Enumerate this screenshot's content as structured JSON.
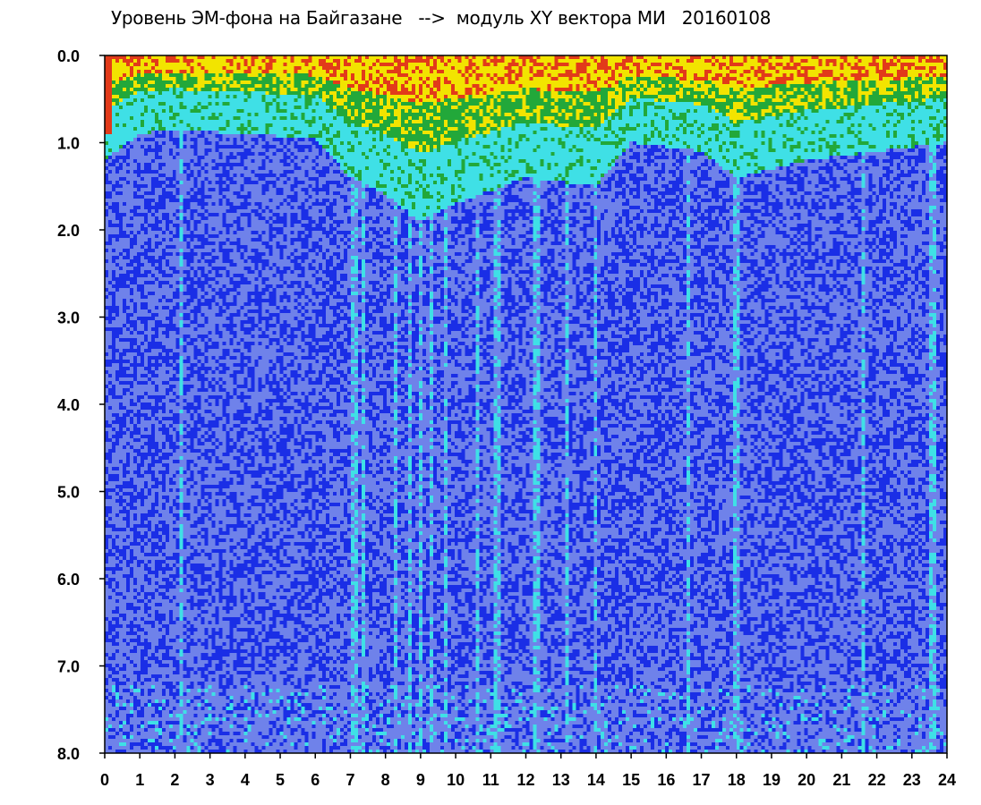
{
  "chart_data": {
    "type": "heatmap",
    "title": "Уровень ЭМ-фона на Байгазане   -->  модуль XY вектора МИ   20160108",
    "xlabel": "",
    "ylabel": "",
    "xlim": [
      0,
      24
    ],
    "ylim": [
      0.0,
      8.0
    ],
    "y_inverted": true,
    "x_ticks": [
      "0",
      "1",
      "2",
      "3",
      "4",
      "5",
      "6",
      "7",
      "8",
      "9",
      "10",
      "11",
      "12",
      "13",
      "14",
      "15",
      "16",
      "17",
      "18",
      "19",
      "20",
      "21",
      "22",
      "23",
      "24"
    ],
    "y_ticks": [
      "0.0",
      "1.0",
      "2.0",
      "3.0",
      "4.0",
      "5.0",
      "6.0",
      "7.0",
      "8.0"
    ],
    "grid": false,
    "legend": "none",
    "colorscale": [
      "#1a2ee6",
      "#6f82ea",
      "#3fe0e6",
      "#22a83a",
      "#f2e400",
      "#e23a1a"
    ],
    "background_level_by_hour": {
      "x": [
        0,
        1,
        2,
        4,
        6,
        7,
        8,
        9,
        10,
        12,
        14,
        15,
        17,
        18,
        20,
        22,
        24
      ],
      "top_envelope_depth": [
        0.9,
        0.6,
        0.55,
        0.6,
        0.65,
        1.1,
        1.3,
        1.6,
        1.4,
        1.1,
        1.2,
        0.7,
        0.8,
        1.1,
        0.9,
        0.8,
        0.7
      ]
    },
    "vertical_bands_hours": [
      2.2,
      7.1,
      7.4,
      8.3,
      8.7,
      9.0,
      9.3,
      9.7,
      10.6,
      11.2,
      12.3,
      13.2,
      14.0,
      16.6,
      18.0,
      21.6,
      23.6
    ]
  }
}
